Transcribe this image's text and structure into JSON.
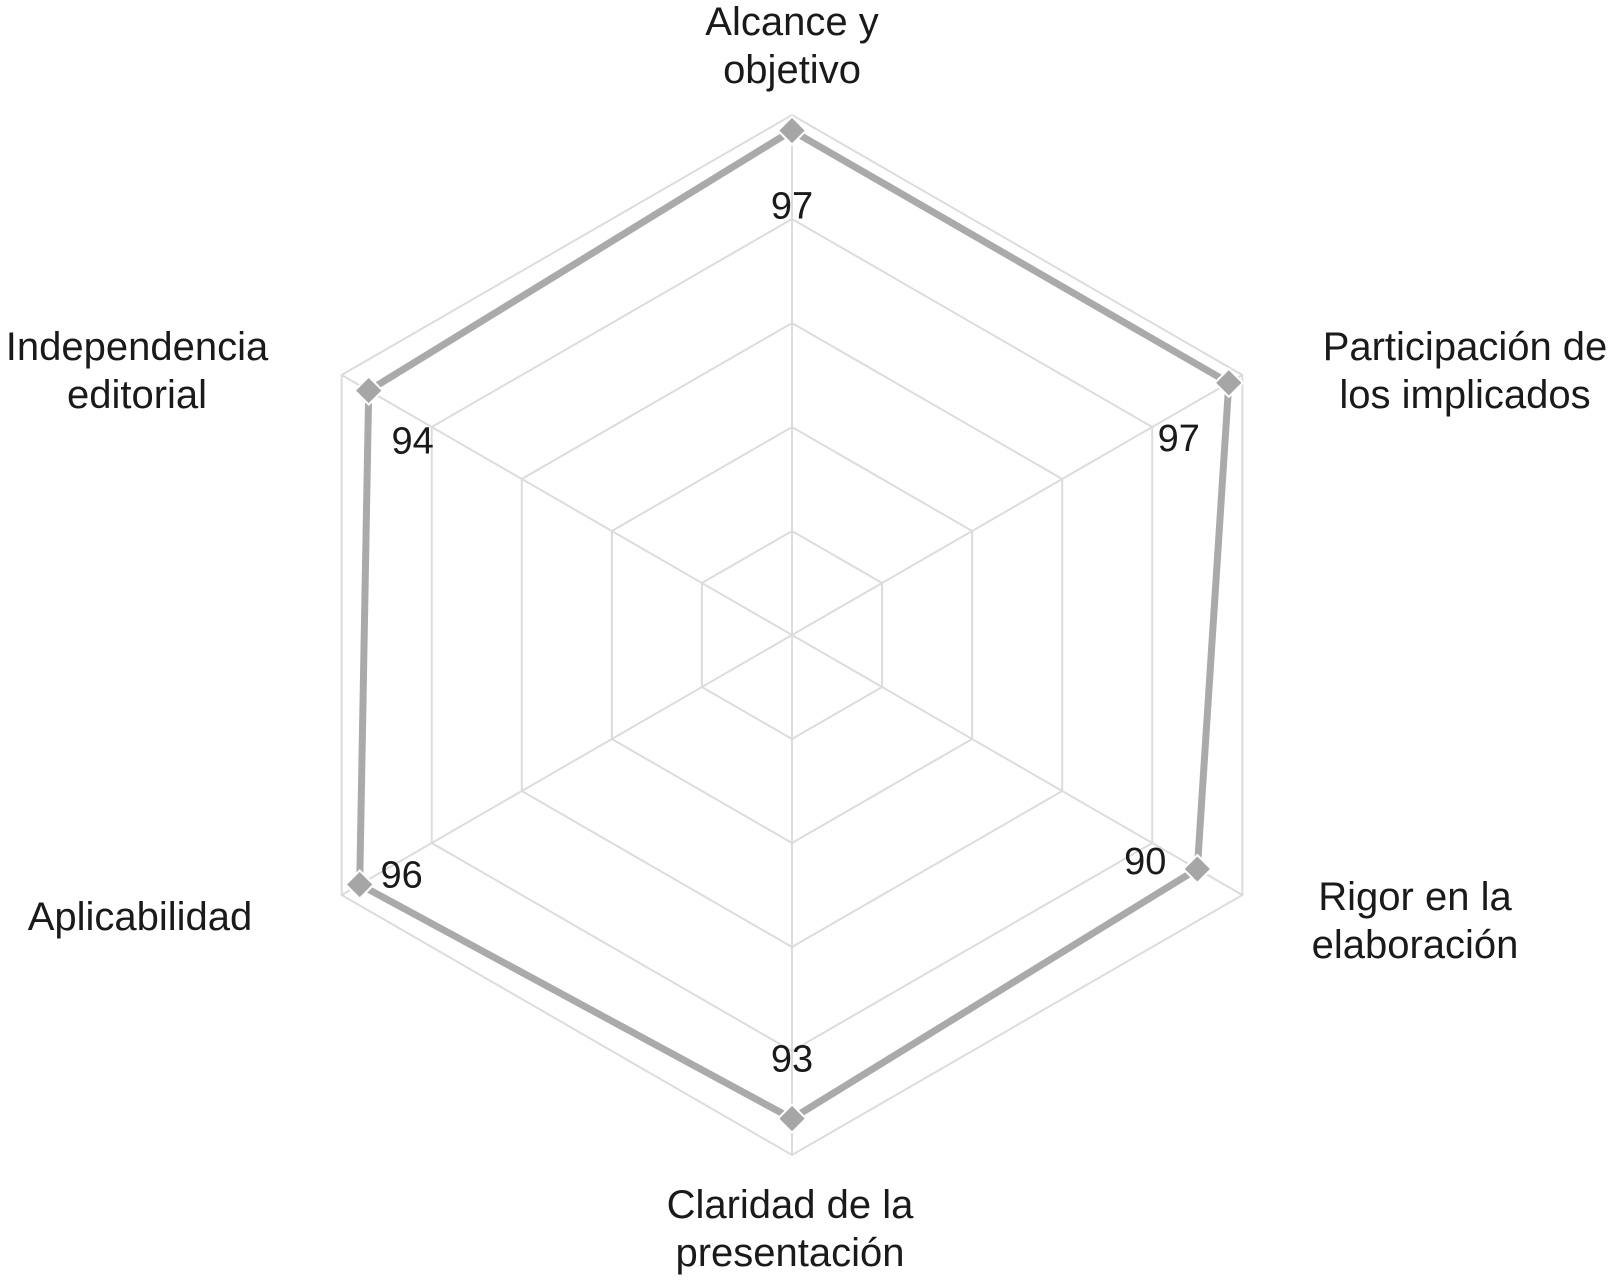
{
  "chart_data": {
    "type": "radar",
    "categories": [
      [
        "Alcance y",
        "objetivo"
      ],
      [
        "Participación de",
        "los implicados"
      ],
      [
        "Rigor en la",
        "elaboración"
      ],
      [
        "Claridad de la",
        "presentación"
      ],
      [
        "Aplicabilidad"
      ],
      [
        "Independencia",
        "editorial"
      ]
    ],
    "values": [
      97,
      97,
      90,
      93,
      96,
      94
    ],
    "value_labels": [
      "97",
      "97",
      "90",
      "93",
      "96",
      "94"
    ],
    "rmax": 100,
    "gridlines": 5,
    "grid": true,
    "colors": {
      "series": "#aaaaaa",
      "grid": "#dcdcdc",
      "marker": "#a6a6a6"
    }
  }
}
